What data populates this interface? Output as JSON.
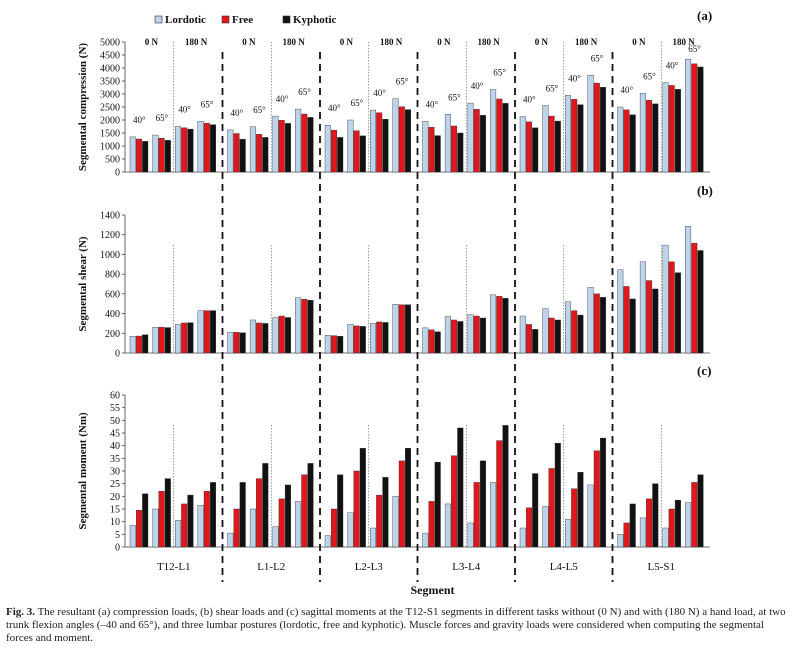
{
  "legend": [
    {
      "name": "Lordotic",
      "color": "#bcd3ea"
    },
    {
      "name": "Free",
      "color": "#e3161b"
    },
    {
      "name": "Kyphotic",
      "color": "#111111"
    }
  ],
  "xlabel": "Segment",
  "caption": {
    "label": "Fig. 3.",
    "text": " The resultant (a) compression loads, (b) shear loads and (c) sagittal moments at the T12-S1 segments in different tasks without (0 N) and with (180 N) a hand load, at two trunk flexion angles (–40 and 65°), and three lumbar postures (lordotic, free and kyphotic). Muscle forces and gravity loads were considered when computing the segmental forces and moment."
  },
  "chart_data": [
    {
      "type": "bar",
      "panel": "(a)",
      "ylabel": "Segmental compression (N)",
      "ylim": [
        0,
        5000
      ],
      "yticks": [
        0,
        500,
        1000,
        1500,
        2000,
        2500,
        3000,
        3500,
        4000,
        4500,
        5000
      ],
      "segments": [
        "T12-L1",
        "L1-L2",
        "L2-L3",
        "L3-L4",
        "L4-L5",
        "L5-S1"
      ],
      "load_labels": [
        "0 N",
        "180 N"
      ],
      "angle_labels": [
        "40°",
        "65°"
      ],
      "series": [
        {
          "name": "Lordotic",
          "values": [
            [
              1350,
              1420,
              1750,
              1950
            ],
            [
              1620,
              1740,
              2150,
              2420
            ],
            [
              1800,
              2000,
              2380,
              2820
            ],
            [
              1950,
              2220,
              2650,
              3170
            ],
            [
              2130,
              2560,
              2950,
              3720
            ],
            [
              2500,
              3020,
              3440,
              4340
            ]
          ]
        },
        {
          "name": "Free",
          "values": [
            [
              1270,
              1300,
              1700,
              1880
            ],
            [
              1480,
              1450,
              1990,
              2230
            ],
            [
              1610,
              1590,
              2280,
              2510
            ],
            [
              1720,
              1770,
              2410,
              2810
            ],
            [
              1930,
              2150,
              2800,
              3420
            ],
            [
              2390,
              2760,
              3330,
              4160
            ]
          ]
        },
        {
          "name": "Kyphotic",
          "values": [
            [
              1180,
              1220,
              1650,
              1820
            ],
            [
              1260,
              1330,
              1870,
              2100
            ],
            [
              1330,
              1390,
              2030,
              2400
            ],
            [
              1400,
              1500,
              2180,
              2640
            ],
            [
              1700,
              1960,
              2590,
              3260
            ],
            [
              2200,
              2620,
              3180,
              4040
            ]
          ]
        }
      ]
    },
    {
      "type": "bar",
      "panel": "(b)",
      "ylabel": "Segmental shear (N)",
      "ylim": [
        0,
        1400
      ],
      "yticks": [
        0,
        200,
        400,
        600,
        800,
        1000,
        1200,
        1400
      ],
      "segments": [
        "T12-L1",
        "L1-L2",
        "L2-L3",
        "L3-L4",
        "L4-L5",
        "L5-S1"
      ],
      "series": [
        {
          "name": "Lordotic",
          "values": [
            [
              170,
              262,
              290,
              430
            ],
            [
              212,
              335,
              360,
              560
            ],
            [
              180,
              290,
              300,
              495
            ],
            [
              255,
              370,
              390,
              590
            ],
            [
              375,
              450,
              520,
              665
            ],
            [
              845,
              925,
              1095,
              1285
            ]
          ]
        },
        {
          "name": "Free",
          "values": [
            [
              172,
              262,
              305,
              430
            ],
            [
              210,
              305,
              375,
              545
            ],
            [
              176,
              275,
              315,
              490
            ],
            [
              235,
              335,
              375,
              575
            ],
            [
              290,
              355,
              430,
              600
            ],
            [
              675,
              735,
              925,
              1115
            ]
          ]
        },
        {
          "name": "Kyphotic",
          "values": [
            [
              185,
              258,
              308,
              430
            ],
            [
              205,
              300,
              360,
              535
            ],
            [
              170,
              270,
              310,
              490
            ],
            [
              215,
              320,
              355,
              555
            ],
            [
              240,
              335,
              385,
              565
            ],
            [
              548,
              650,
              815,
              1040
            ]
          ]
        }
      ]
    },
    {
      "type": "bar",
      "panel": "(c)",
      "ylabel": "Segmental moment (Nm)",
      "ylim": [
        0,
        60
      ],
      "yticks": [
        0,
        5,
        10,
        15,
        20,
        25,
        30,
        35,
        40,
        45,
        50,
        55,
        60
      ],
      "segments": [
        "T12-L1",
        "L1-L2",
        "L2-L3",
        "L3-L4",
        "L4-L5",
        "L5-S1"
      ],
      "series": [
        {
          "name": "Lordotic",
          "values": [
            [
              8.5,
              15,
              10.5,
              16.5
            ],
            [
              5.5,
              15,
              8,
              18
            ],
            [
              4.5,
              13.5,
              7.5,
              20
            ],
            [
              5.5,
              17,
              9.5,
              25.5
            ],
            [
              7.5,
              16,
              11,
              24.5
            ],
            [
              5,
              11.5,
              7.5,
              17.5
            ]
          ]
        },
        {
          "name": "Free",
          "values": [
            [
              14.5,
              22,
              17,
              22
            ],
            [
              15,
              27,
              19,
              28.5
            ],
            [
              15,
              30,
              20.5,
              34
            ],
            [
              18,
              36,
              25.5,
              42
            ],
            [
              15.5,
              31,
              23,
              38
            ],
            [
              9.5,
              19,
              15,
              25.5
            ]
          ]
        },
        {
          "name": "Kyphotic",
          "values": [
            [
              21,
              27,
              20.5,
              25.5
            ],
            [
              25.5,
              33,
              24.5,
              33
            ],
            [
              28.5,
              39,
              27.5,
              39
            ],
            [
              33.5,
              47,
              34,
              48
            ],
            [
              29,
              41,
              29.5,
              43
            ],
            [
              17,
              25,
              18.5,
              28.5
            ]
          ]
        }
      ]
    }
  ]
}
